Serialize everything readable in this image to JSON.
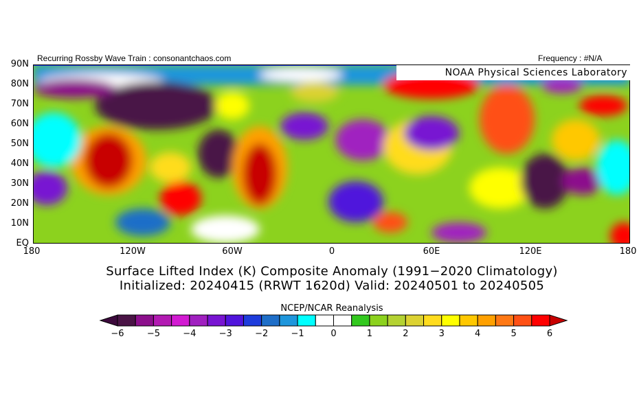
{
  "header": {
    "left": "Recurring Rossby Wave Train : consonantchaos.com",
    "right": "Frequency : #N/A",
    "lab": "NOAA Physical Sciences Laboratory"
  },
  "map": {
    "lat_labels": [
      "90N",
      "80N",
      "70N",
      "60N",
      "50N",
      "40N",
      "30N",
      "20N",
      "10N",
      "EQ"
    ],
    "lon_labels": [
      "180",
      "120W",
      "60W",
      "0",
      "60E",
      "120E",
      "180"
    ],
    "variable": "Surface Lifted Index (K) Composite Anomaly",
    "extent": "0-90N, 180W-180E"
  },
  "title": {
    "line1": "Surface Lifted Index (K) Composite Anomaly (1991−2020 Climatology)",
    "line2": "Initialized: 20240415 (RRWT 1620d) Valid: 20240501 to 20240505"
  },
  "colorbar": {
    "source": "NCEP/NCAR Reanalysis",
    "tick_labels": [
      "−6",
      "−5",
      "−4",
      "−3",
      "−2",
      "−1",
      "0",
      "1",
      "2",
      "3",
      "4",
      "5",
      "6"
    ],
    "range": [
      -6,
      6
    ],
    "step": 0.5,
    "colors": [
      "#4a1446",
      "#8c0f8c",
      "#b21ab2",
      "#d21ad2",
      "#a020c0",
      "#7814d2",
      "#5014dc",
      "#1e3cdc",
      "#1e6ec8",
      "#1e96dc",
      "#00ffff",
      "#ffffff",
      "#ffffff",
      "#32c81e",
      "#8cd21e",
      "#b4d232",
      "#dcd232",
      "#ffdc1e",
      "#ffff00",
      "#ffc800",
      "#ffa000",
      "#ff7814",
      "#ff5014",
      "#ff0000"
    ],
    "under_color": "#3c0a3c",
    "over_color": "#c80000"
  }
}
